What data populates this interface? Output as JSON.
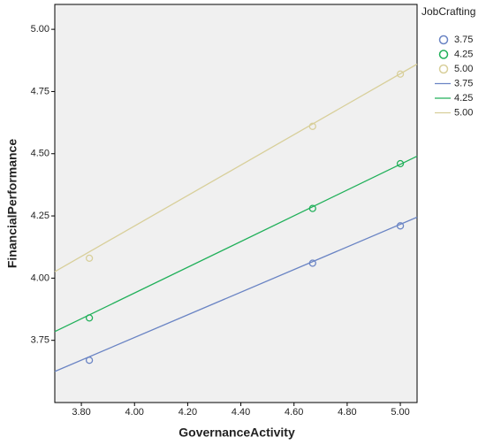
{
  "chart_data": {
    "type": "scatter",
    "x_label": "GovernanceActivity",
    "y_label": "FinancialPerformance",
    "legend_title": "JobCrafting",
    "xlim": [
      3.7,
      5.063
    ],
    "ylim": [
      3.5,
      5.1
    ],
    "xticks": [
      {
        "value": 3.8,
        "label": "3.80"
      },
      {
        "value": 4.0,
        "label": "4.00"
      },
      {
        "value": 4.2,
        "label": "4.20"
      },
      {
        "value": 4.4,
        "label": "4.40"
      },
      {
        "value": 4.6,
        "label": "4.60"
      },
      {
        "value": 4.8,
        "label": "4.80"
      },
      {
        "value": 5.0,
        "label": "5.00"
      }
    ],
    "yticks": [
      3.75,
      {
        "value": 4.0,
        "label": "4.00"
      },
      4.25,
      {
        "value": 4.5,
        "label": "4.50"
      },
      4.75,
      {
        "value": 5.0,
        "label": "5.00"
      }
    ],
    "series": [
      {
        "name": "3.75",
        "color": "#6a84c4",
        "x": [
          3.83,
          4.67,
          5.0
        ],
        "values": [
          3.67,
          4.06,
          4.21
        ]
      },
      {
        "name": "4.25",
        "color": "#21b05a",
        "x": [
          3.83,
          4.67,
          5.0
        ],
        "values": [
          3.84,
          4.28,
          4.46
        ]
      },
      {
        "name": "5.00",
        "color": "#d8cf9a",
        "x": [
          3.83,
          4.67,
          5.0
        ],
        "values": [
          4.08,
          4.61,
          4.82
        ]
      }
    ],
    "lines": [
      {
        "name": "3.75",
        "color": "#6a84c4",
        "x": [
          3.7,
          5.063
        ],
        "values": [
          3.625,
          4.245
        ]
      },
      {
        "name": "4.25",
        "color": "#21b05a",
        "x": [
          3.7,
          5.063
        ],
        "values": [
          3.785,
          4.49
        ]
      },
      {
        "name": "5.00",
        "color": "#d8cf9a",
        "x": [
          3.7,
          5.063
        ],
        "values": [
          4.026,
          4.86
        ]
      }
    ]
  }
}
